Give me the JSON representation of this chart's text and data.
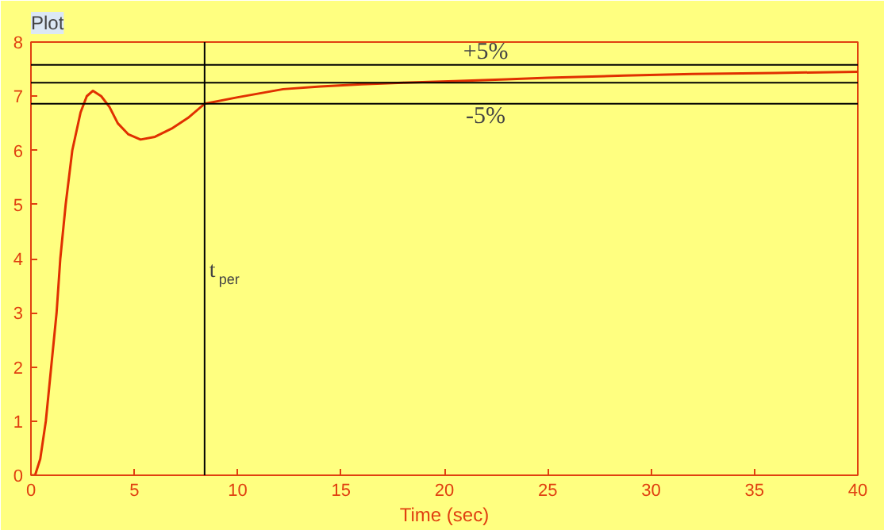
{
  "chart_data": {
    "type": "line",
    "title": "Plot",
    "xlabel": "Time (sec)",
    "x": [
      0,
      0.2,
      0.45,
      0.72,
      0.98,
      1.24,
      1.42,
      1.68,
      2.0,
      2.4,
      2.7,
      3.0,
      3.4,
      3.8,
      4.2,
      4.7,
      5.3,
      6.0,
      6.8,
      7.6,
      8.4,
      10,
      12.2,
      14,
      16,
      18,
      20.5,
      23,
      25,
      28.7,
      32,
      36,
      40
    ],
    "series": [
      {
        "color": "#e03000",
        "values": [
          0,
          0,
          0.3,
          1,
          2,
          3,
          4,
          5,
          6,
          6.7,
          7.0,
          7.1,
          7.0,
          6.8,
          6.5,
          6.3,
          6.2,
          6.25,
          6.4,
          6.6,
          6.86,
          6.98,
          7.13,
          7.18,
          7.22,
          7.25,
          7.28,
          7.31,
          7.34,
          7.38,
          7.41,
          7.43,
          7.45
        ]
      }
    ],
    "xlim": [
      0,
      40
    ],
    "ylim": [
      0,
      8
    ],
    "xticks": [
      0,
      5,
      10,
      15,
      20,
      25,
      30,
      35,
      40
    ],
    "yticks": [
      0,
      1,
      2,
      3,
      4,
      5,
      6,
      7,
      8
    ],
    "annotations": [
      {
        "text": "+5%",
        "x": 22,
        "y": 7.58
      },
      {
        "text": "-5%",
        "x": 22,
        "y": 6.86
      }
    ],
    "grid": false,
    "line_style": "solid",
    "ref_lines": [
      {
        "axis": "y",
        "value": 7.58,
        "label": null,
        "color": "#000000"
      },
      {
        "axis": "y",
        "value": 7.25,
        "label": null,
        "color": "#000000"
      },
      {
        "axis": "y",
        "value": 6.86,
        "label": null,
        "color": "#000000"
      },
      {
        "axis": "x",
        "value": 8.4,
        "label": "t$_{per}$",
        "color": "#000000"
      }
    ]
  }
}
